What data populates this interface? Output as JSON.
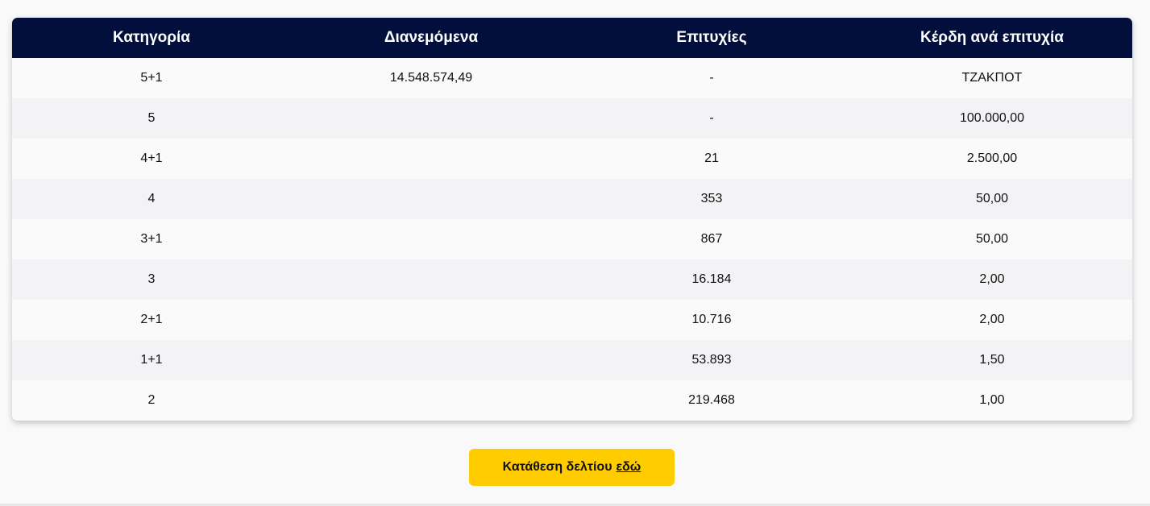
{
  "table": {
    "headers": {
      "category": "Κατηγορία",
      "distributed": "Διανεμόμενα",
      "winners": "Επιτυχίες",
      "prize": "Κέρδη ανά επιτυχία"
    },
    "rows": [
      {
        "category": "5+1",
        "distributed": "14.548.574,49",
        "winners": "-",
        "prize": "ΤΖΑΚΠΟΤ"
      },
      {
        "category": "5",
        "distributed": "",
        "winners": "-",
        "prize": "100.000,00"
      },
      {
        "category": "4+1",
        "distributed": "",
        "winners": "21",
        "prize": "2.500,00"
      },
      {
        "category": "4",
        "distributed": "",
        "winners": "353",
        "prize": "50,00"
      },
      {
        "category": "3+1",
        "distributed": "",
        "winners": "867",
        "prize": "50,00"
      },
      {
        "category": "3",
        "distributed": "",
        "winners": "16.184",
        "prize": "2,00"
      },
      {
        "category": "2+1",
        "distributed": "",
        "winners": "10.716",
        "prize": "2,00"
      },
      {
        "category": "1+1",
        "distributed": "",
        "winners": "53.893",
        "prize": "1,50"
      },
      {
        "category": "2",
        "distributed": "",
        "winners": "219.468",
        "prize": "1,00"
      }
    ]
  },
  "cta": {
    "label": "Κατάθεση δελτίου",
    "link_text": "εδώ"
  },
  "colors": {
    "header_bg": "#020e3c",
    "cta_bg": "#ffcc00"
  }
}
